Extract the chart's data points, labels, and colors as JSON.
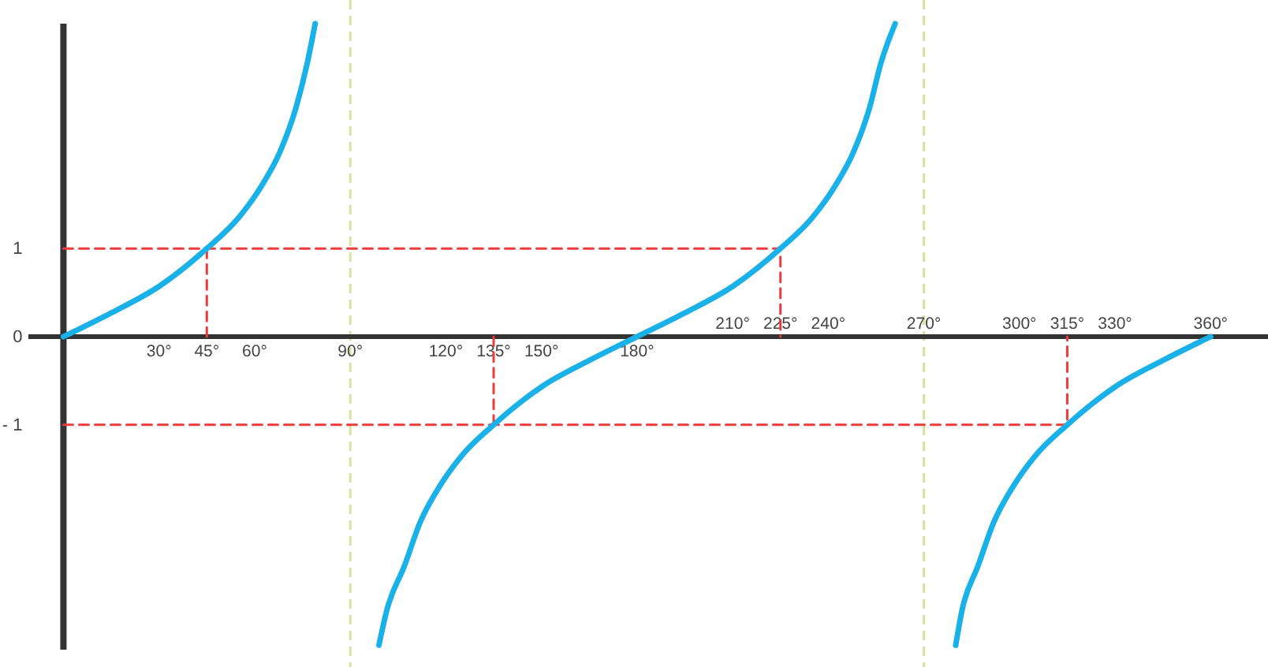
{
  "chart_data": {
    "type": "line",
    "xlim": [
      -11,
      378
    ],
    "ylim": [
      -3.55,
      3.55
    ],
    "xticks": [
      {
        "value": 30,
        "label": "30°"
      },
      {
        "value": 45,
        "label": "45°"
      },
      {
        "value": 60,
        "label": "60°"
      },
      {
        "value": 90,
        "label": "90°"
      },
      {
        "value": 120,
        "label": "120°"
      },
      {
        "value": 135,
        "label": "135°"
      },
      {
        "value": 150,
        "label": "150°"
      },
      {
        "value": 180,
        "label": "180°"
      }
    ],
    "x2lim": [
      -11,
      378
    ],
    "x2ticks": [
      {
        "value": 210,
        "label": "210°"
      },
      {
        "value": 225,
        "label": "225°"
      },
      {
        "value": 240,
        "label": "240°"
      },
      {
        "value": 270,
        "label": "270°"
      },
      {
        "value": 300,
        "label": "300°"
      },
      {
        "value": 315,
        "label": "315°"
      },
      {
        "value": 330,
        "label": "330°"
      },
      {
        "value": 360,
        "label": "360°"
      }
    ],
    "yticks": [
      {
        "value": 1,
        "label": "1"
      },
      {
        "value": 0,
        "label": "0"
      },
      {
        "value": -1,
        "label": "- 1"
      }
    ],
    "grid": false,
    "series": [
      {
        "color": "#1ab0e8",
        "x": [
          0,
          15,
          30,
          45,
          55,
          62,
          68,
          73,
          76.5,
          79
        ],
        "values": [
          0,
          0.27,
          0.57,
          1,
          1.35,
          1.7,
          2.1,
          2.6,
          3.1,
          3.55
        ]
      },
      {
        "color": "#1ab0e8",
        "x": [
          99,
          101.5,
          107,
          112,
          118,
          125,
          135,
          150,
          165,
          180,
          195,
          210,
          225,
          235,
          242,
          248,
          253,
          256.5,
          261
        ],
        "values": [
          -3.5,
          -3.1,
          -2.6,
          -2.1,
          -1.7,
          -1.35,
          -1,
          -0.57,
          -0.27,
          0,
          0.27,
          0.57,
          1,
          1.35,
          1.7,
          2.1,
          2.6,
          3.1,
          3.55
        ]
      },
      {
        "color": "#1ab0e8",
        "x": [
          280,
          282,
          287,
          292,
          298,
          305,
          315,
          330,
          345,
          360
        ],
        "values": [
          -3.5,
          -3.1,
          -2.6,
          -2.1,
          -1.7,
          -1.35,
          -1,
          -0.57,
          -0.27,
          0
        ]
      },
      {
        "color": "#ee3b3b",
        "line_style": "dashed",
        "x": [
          0,
          225,
          225
        ],
        "values": [
          1,
          1,
          0
        ]
      },
      {
        "color": "#ee3b3b",
        "line_style": "dashed",
        "x": [
          45,
          45
        ],
        "values": [
          1,
          0
        ]
      },
      {
        "color": "#ee3b3b",
        "line_style": "dashed",
        "x": [
          0,
          315,
          315
        ],
        "values": [
          -1,
          -1,
          0
        ]
      },
      {
        "color": "#ee3b3b",
        "line_style": "dashed",
        "x": [
          135,
          135
        ],
        "values": [
          -1,
          0
        ]
      }
    ],
    "ref_lines": [
      {
        "axis": "x",
        "value": 90,
        "color": "#d6e39a",
        "line_style": "dashed"
      },
      {
        "axis": "x",
        "value": 270,
        "color": "#d6e39a",
        "line_style": "dashed"
      }
    ]
  }
}
